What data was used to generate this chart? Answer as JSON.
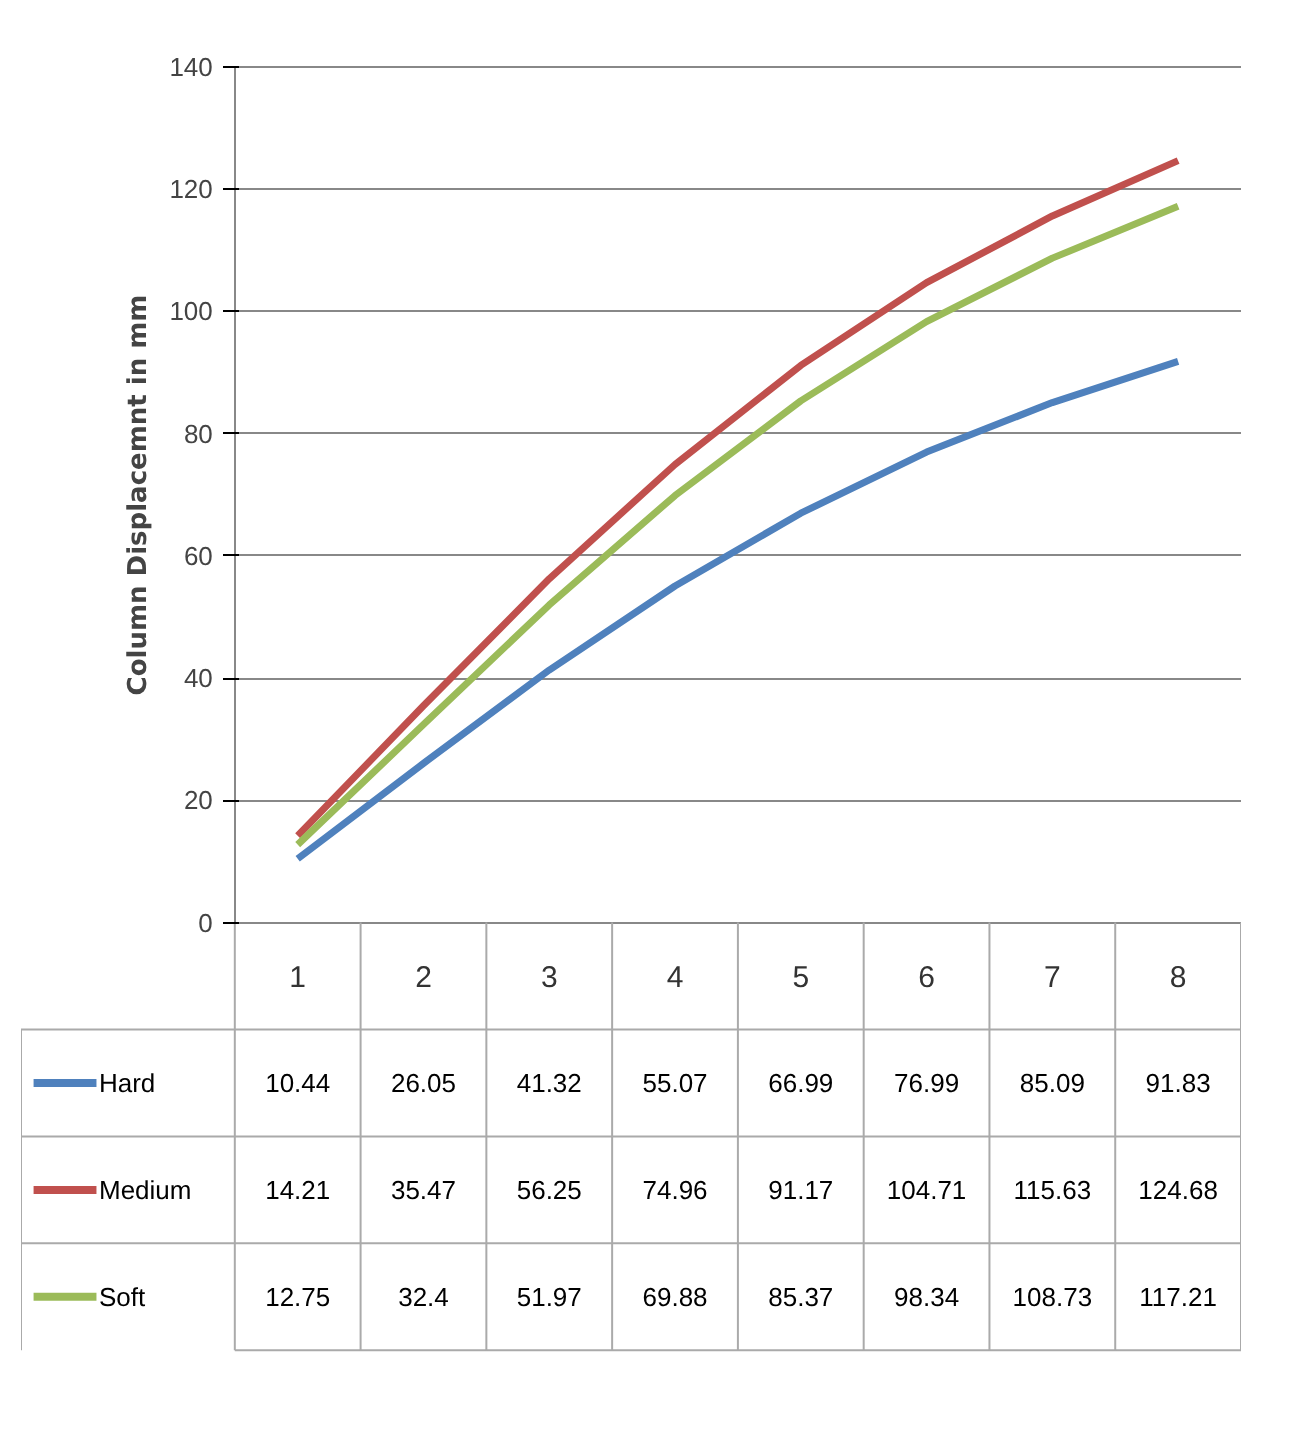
{
  "chart_data": {
    "type": "line",
    "ylabel": "Column Displacemnt in mm",
    "categories": [
      "1",
      "2",
      "3",
      "4",
      "5",
      "6",
      "7",
      "8"
    ],
    "series": [
      {
        "name": "Hard",
        "color": "#4f81bd",
        "values": [
          10.44,
          26.05,
          41.32,
          55.07,
          66.99,
          76.99,
          85.09,
          91.83
        ]
      },
      {
        "name": "Medium",
        "color": "#c0504d",
        "values": [
          14.21,
          35.47,
          56.25,
          74.96,
          91.17,
          104.71,
          115.63,
          124.68
        ]
      },
      {
        "name": "Soft",
        "color": "#9bbb59",
        "values": [
          12.75,
          32.4,
          51.97,
          69.88,
          85.37,
          98.34,
          108.73,
          117.21
        ]
      }
    ],
    "ylim": [
      0,
      140
    ],
    "yticks": [
      0,
      20,
      40,
      60,
      80,
      100,
      120,
      140
    ],
    "grid": "y",
    "legend": "bottom",
    "data_labels": true
  }
}
